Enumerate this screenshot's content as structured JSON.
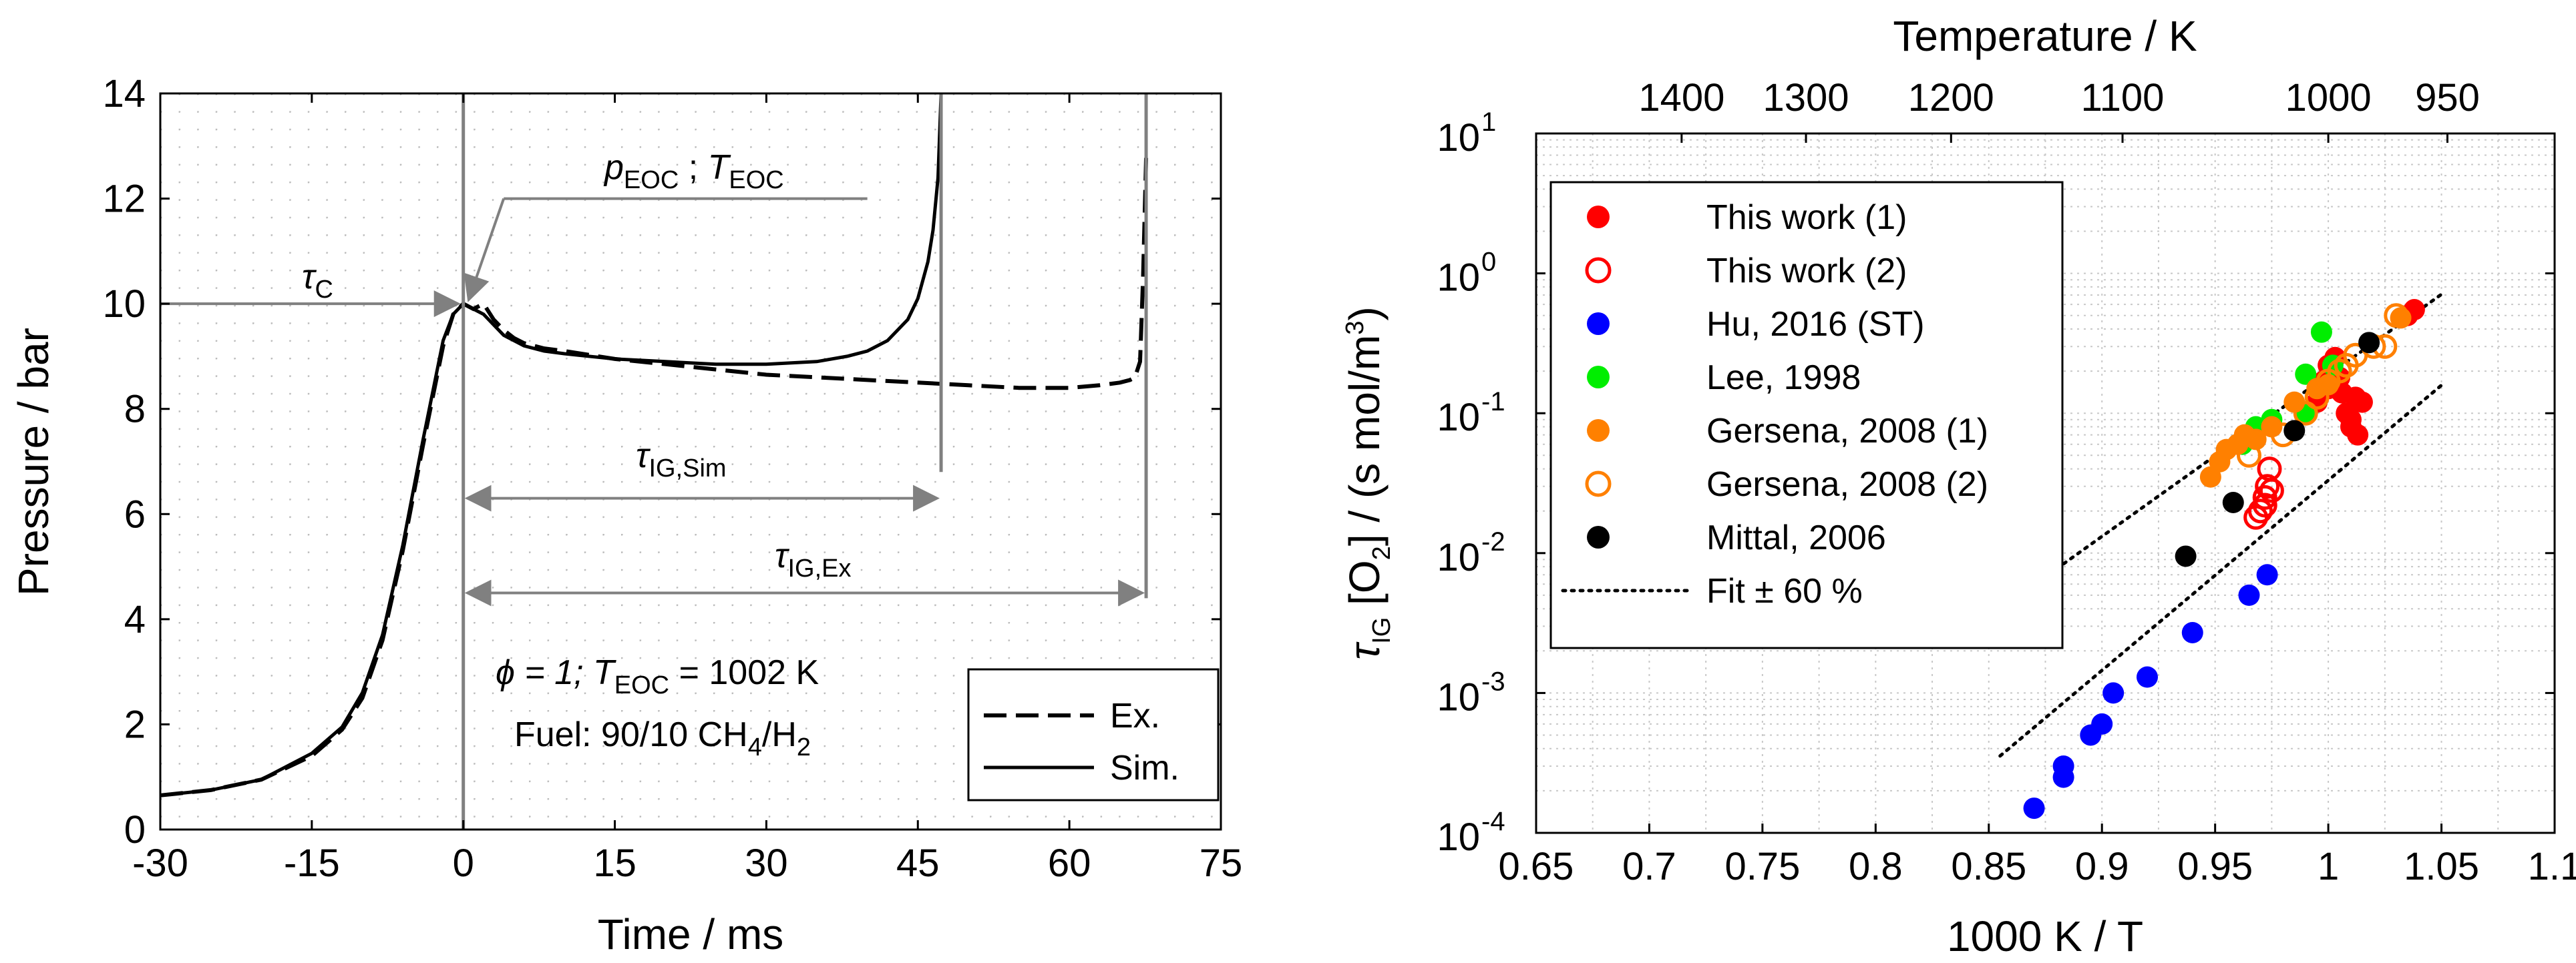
{
  "chart_data": [
    {
      "type": "line",
      "xlabel": "Time / ms",
      "ylabel": "Pressure / bar",
      "xlim": [
        -30,
        75
      ],
      "ylim": [
        0,
        14
      ],
      "xticks": [
        -30,
        -15,
        0,
        15,
        30,
        45,
        60,
        75
      ],
      "yticks": [
        0,
        2,
        4,
        6,
        8,
        10,
        12,
        14
      ],
      "grid": true,
      "series": [
        {
          "name": "Ex.",
          "style": "dashed",
          "x": [
            -30,
            -25,
            -20,
            -15,
            -12,
            -10,
            -8,
            -6,
            -4,
            -2,
            -1,
            0,
            1,
            2,
            3,
            4,
            5,
            6,
            8,
            10,
            15,
            20,
            25,
            30,
            35,
            40,
            45,
            50,
            55,
            60,
            63,
            65,
            66,
            66.5,
            67,
            67.3,
            67.6
          ],
          "y": [
            0.65,
            0.75,
            0.95,
            1.4,
            1.9,
            2.5,
            3.6,
            5.3,
            7.3,
            9.2,
            9.8,
            10.0,
            9.9,
            10.0,
            9.7,
            9.5,
            9.35,
            9.25,
            9.15,
            9.1,
            8.95,
            8.85,
            8.75,
            8.65,
            8.6,
            8.55,
            8.5,
            8.45,
            8.4,
            8.4,
            8.45,
            8.5,
            8.55,
            8.6,
            8.9,
            10.5,
            12.8
          ]
        },
        {
          "name": "Sim.",
          "style": "solid",
          "x": [
            -30,
            -25,
            -20,
            -15,
            -12,
            -10,
            -8,
            -6,
            -4,
            -2,
            -1,
            0,
            1,
            2,
            3,
            4,
            6,
            8,
            10,
            15,
            20,
            25,
            30,
            35,
            38,
            40,
            42,
            44,
            45,
            46,
            46.5,
            47,
            47.3
          ],
          "y": [
            0.65,
            0.75,
            0.95,
            1.45,
            1.95,
            2.6,
            3.7,
            5.4,
            7.4,
            9.3,
            9.8,
            10.0,
            9.9,
            9.8,
            9.6,
            9.4,
            9.2,
            9.1,
            9.05,
            8.95,
            8.9,
            8.85,
            8.85,
            8.9,
            9.0,
            9.1,
            9.3,
            9.7,
            10.1,
            10.8,
            11.4,
            12.4,
            14.0
          ]
        }
      ],
      "annotations": {
        "tau_c": "τ",
        "tau_c_sub": "C",
        "p_eoc": "p",
        "p_eoc_sub": "EOC",
        "t_eoc": "T",
        "t_eoc_sub": "EOC",
        "sep": " ; ",
        "tau_sim": "τ",
        "tau_sim_sub": "IG,Sim",
        "tau_ex": "τ",
        "tau_ex_sub": "IG,Ex",
        "cond_phi": "ϕ = 1; ",
        "cond_T": "T",
        "cond_T_sub": "EOC",
        "cond_T_val": " = 1002 K",
        "fuel": "Fuel: 90/10 CH",
        "fuel_sub1": "4",
        "fuel_mid": "/H",
        "fuel_sub2": "2"
      },
      "legend": {
        "position": "bottom-right",
        "entries": [
          "Ex.",
          "Sim."
        ]
      }
    },
    {
      "type": "scatter",
      "xlabel": "1000 K / T",
      "ylabel_pre": "τ",
      "ylabel_sub1": "IG",
      "ylabel_mid": " [O",
      "ylabel_sub2": "2",
      "ylabel_post": "] / (s mol/m",
      "ylabel_sup": "3",
      "ylabel_end": ")",
      "top_xlabel": "Temperature / K",
      "xlim": [
        0.65,
        1.1
      ],
      "ylim_log10": [
        -4,
        1
      ],
      "xticks": [
        "0.65",
        "0.7",
        "0.75",
        "0.8",
        "0.85",
        "0.9",
        "0.95",
        "1",
        "1.05",
        "1.1"
      ],
      "yticks_exp": [
        "1",
        "0",
        "-1",
        "-2",
        "-3",
        "-4"
      ],
      "ytick_base": "10",
      "top_ticks": [
        1400,
        1300,
        1200,
        1100,
        1000,
        950
      ],
      "grid": true,
      "series": [
        {
          "name": "This work (1)",
          "color": "#ff0000",
          "filled": true,
          "x": [
            0.995,
            1.0,
            1.002,
            1.005,
            1.008,
            1.01,
            1.012,
            1.015,
            1.0,
            0.998,
            1.003,
            1.01,
            1.013,
            1.006,
            1.035,
            1.038
          ],
          "y": [
            0.12,
            0.15,
            0.2,
            0.18,
            0.1,
            0.08,
            0.13,
            0.12,
            0.22,
            0.17,
            0.25,
            0.09,
            0.07,
            0.14,
            0.5,
            0.55
          ]
        },
        {
          "name": "This work (2)",
          "color": "#ff0000",
          "filled": false,
          "x": [
            0.968,
            0.97,
            0.972,
            0.973,
            0.974,
            0.972,
            0.975
          ],
          "y": [
            0.018,
            0.02,
            0.025,
            0.03,
            0.04,
            0.022,
            0.028
          ]
        },
        {
          "name": "Hu, 2016 (ST)",
          "color": "#0000ff",
          "filled": true,
          "x": [
            0.87,
            0.883,
            0.883,
            0.895,
            0.9,
            0.905,
            0.92,
            0.94,
            0.965,
            0.973
          ],
          "y": [
            0.00015,
            0.00025,
            0.0003,
            0.0005,
            0.0006,
            0.001,
            0.0013,
            0.0027,
            0.005,
            0.007
          ]
        },
        {
          "name": "Lee, 1998",
          "color": "#00ee00",
          "filled": true,
          "x": [
            0.962,
            0.968,
            0.975,
            0.99,
            0.997,
            1.002,
            0.99
          ],
          "y": [
            0.06,
            0.08,
            0.09,
            0.19,
            0.38,
            0.22,
            0.1
          ]
        },
        {
          "name": "Gersena, 2008 (1)",
          "color": "#ff8000",
          "filled": true,
          "x": [
            0.948,
            0.952,
            0.955,
            0.96,
            0.963,
            0.968,
            0.975,
            0.985,
            0.995,
            1.0,
            1.032
          ],
          "y": [
            0.035,
            0.045,
            0.055,
            0.06,
            0.07,
            0.065,
            0.08,
            0.12,
            0.15,
            0.16,
            0.48
          ]
        },
        {
          "name": "Gersena, 2008 (2)",
          "color": "#ff8000",
          "filled": false,
          "x": [
            0.965,
            0.98,
            0.99,
            0.995,
            1.0,
            1.005,
            1.008,
            1.012,
            1.02,
            1.025,
            1.03
          ],
          "y": [
            0.05,
            0.07,
            0.1,
            0.13,
            0.17,
            0.2,
            0.22,
            0.26,
            0.3,
            0.3,
            0.5
          ]
        },
        {
          "name": "Mittal, 2006",
          "color": "#000000",
          "filled": true,
          "x": [
            0.937,
            0.958,
            0.985,
            1.018
          ],
          "y": [
            0.0095,
            0.023,
            0.075,
            0.32
          ]
        }
      ],
      "fit_lines": {
        "name": "Fit ± 60 %",
        "upper": {
          "x": [
            0.855,
            1.05
          ],
          "log10y": [
            -2.4,
            -0.15
          ]
        },
        "lower": {
          "x": [
            0.855,
            1.05
          ],
          "log10y": [
            -3.45,
            -0.8
          ]
        }
      },
      "legend": {
        "position": "top-left"
      }
    }
  ]
}
